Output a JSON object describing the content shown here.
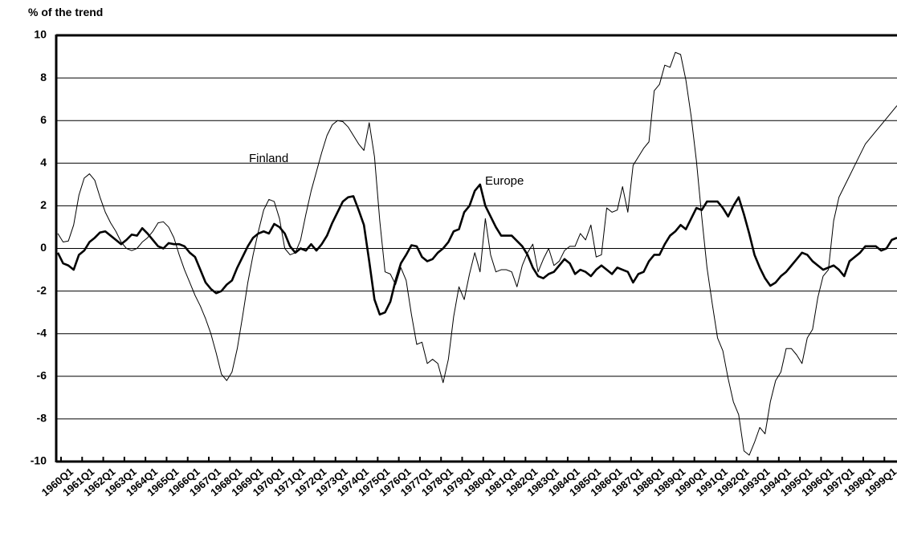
{
  "chart_data": {
    "type": "line",
    "y_label": "% of the trend",
    "annotations": [
      "Finland",
      "Europe"
    ],
    "categories": [
      "1960Q1",
      null,
      null,
      null,
      "1961Q1",
      null,
      null,
      null,
      "1962Q1",
      null,
      null,
      null,
      "1963Q1",
      null,
      null,
      null,
      "1964Q1",
      null,
      null,
      null,
      "1965Q1",
      null,
      null,
      null,
      "1966Q1",
      null,
      null,
      null,
      "1967Q1",
      null,
      null,
      null,
      "1968Q1",
      null,
      null,
      null,
      "1969Q1",
      null,
      null,
      null,
      "1970Q1",
      null,
      null,
      null,
      "1971Q1",
      null,
      null,
      null,
      "1972Q1",
      null,
      null,
      null,
      "1973Q1",
      null,
      null,
      null,
      "1974Q1",
      null,
      null,
      null,
      "1975Q1",
      null,
      null,
      null,
      "1976Q1",
      null,
      null,
      null,
      "1977Q1",
      null,
      null,
      null,
      "1978Q1",
      null,
      null,
      null,
      "1979Q1",
      null,
      null,
      null,
      "1980Q1",
      null,
      null,
      null,
      "1981Q1",
      null,
      null,
      null,
      "1982Q1",
      null,
      null,
      null,
      "1983Q1",
      null,
      null,
      null,
      "1984Q1",
      null,
      null,
      null,
      "1985Q1",
      null,
      null,
      null,
      "1986Q1",
      null,
      null,
      null,
      "1987Q1",
      null,
      null,
      null,
      "1988Q1",
      null,
      null,
      null,
      "1989Q1",
      null,
      null,
      null,
      "1990Q1",
      null,
      null,
      null,
      "1991Q1",
      null,
      null,
      null,
      "1992Q1",
      null,
      null,
      null,
      "1993Q1",
      null,
      null,
      null,
      "1994Q1",
      null,
      null,
      null,
      "1995Q1",
      null,
      null,
      null,
      "1996Q1",
      null,
      null,
      null,
      "1997Q1",
      null,
      null,
      null,
      "1998Q1",
      null,
      null,
      null,
      "1999Q1",
      null,
      null,
      null
    ],
    "series": [
      {
        "name": "Finland",
        "color": "#000000",
        "width": 1,
        "values": [
          0.7,
          0.3,
          0.35,
          1.1,
          2.5,
          3.3,
          3.5,
          3.2,
          2.4,
          1.7,
          1.2,
          0.8,
          0.3,
          0.0,
          -0.1,
          0.0,
          0.3,
          0.5,
          0.8,
          1.2,
          1.25,
          1.0,
          0.5,
          -0.3,
          -1.0,
          -1.6,
          -2.2,
          -2.7,
          -3.3,
          -4.0,
          -4.9,
          -5.9,
          -6.2,
          -5.8,
          -4.7,
          -3.2,
          -1.6,
          -0.3,
          0.8,
          1.8,
          2.3,
          2.2,
          1.4,
          0.0,
          -0.3,
          -0.2,
          0.4,
          1.6,
          2.7,
          3.6,
          4.5,
          5.3,
          5.8,
          6.0,
          5.95,
          5.7,
          5.3,
          4.9,
          4.6,
          5.9,
          4.3,
          1.3,
          -1.1,
          -1.2,
          -1.7,
          -0.9,
          -1.5,
          -3.1,
          -4.5,
          -4.4,
          -5.4,
          -5.2,
          -5.4,
          -6.3,
          -5.2,
          -3.2,
          -1.8,
          -2.4,
          -1.2,
          -0.2,
          -1.1,
          1.4,
          -0.3,
          -1.1,
          -1.0,
          -1.0,
          -1.1,
          -1.8,
          -0.8,
          -0.2,
          0.2,
          -1.1,
          -0.5,
          0.0,
          -0.8,
          -0.6,
          -0.1,
          0.1,
          0.1,
          0.7,
          0.4,
          1.1,
          -0.4,
          -0.3,
          1.9,
          1.7,
          1.8,
          2.9,
          1.7,
          3.9,
          4.3,
          4.7,
          5.0,
          7.4,
          7.7,
          8.6,
          8.5,
          9.2,
          9.1,
          7.9,
          6.2,
          4.1,
          1.5,
          -0.9,
          -2.6,
          -4.2,
          -4.8,
          -6.1,
          -7.2,
          -7.8,
          -9.5,
          -9.7,
          -9.1,
          -8.4,
          -8.7,
          -7.2,
          -6.2,
          -5.8,
          -4.7,
          -4.7,
          -5.0,
          -5.4,
          -4.2,
          -3.8,
          -2.3,
          -1.3,
          -1.0,
          1.3,
          2.4,
          2.9,
          3.4,
          3.9,
          4.4,
          4.9,
          5.2,
          5.5,
          5.8,
          6.1,
          6.4,
          6.7
        ]
      },
      {
        "name": "Europe",
        "color": "#000000",
        "width": 2.6,
        "values": [
          -0.2,
          -0.7,
          -0.8,
          -1.0,
          -0.3,
          -0.1,
          0.3,
          0.5,
          0.75,
          0.8,
          0.6,
          0.4,
          0.2,
          0.4,
          0.65,
          0.6,
          0.95,
          0.7,
          0.4,
          0.1,
          0.0,
          0.25,
          0.2,
          0.2,
          0.1,
          -0.2,
          -0.4,
          -1.0,
          -1.6,
          -1.9,
          -2.1,
          -2.0,
          -1.7,
          -1.5,
          -0.9,
          -0.4,
          0.1,
          0.5,
          0.7,
          0.8,
          0.7,
          1.15,
          1.0,
          0.7,
          0.1,
          -0.2,
          0.0,
          -0.1,
          0.2,
          -0.1,
          0.2,
          0.6,
          1.2,
          1.7,
          2.2,
          2.4,
          2.45,
          1.8,
          1.1,
          -0.6,
          -2.4,
          -3.1,
          -3.0,
          -2.5,
          -1.5,
          -0.7,
          -0.3,
          0.15,
          0.1,
          -0.4,
          -0.6,
          -0.5,
          -0.2,
          0.0,
          0.3,
          0.8,
          0.9,
          1.7,
          2.0,
          2.7,
          3.0,
          2.0,
          1.5,
          1.0,
          0.6,
          0.6,
          0.6,
          0.35,
          0.1,
          -0.3,
          -0.9,
          -1.3,
          -1.4,
          -1.2,
          -1.1,
          -0.8,
          -0.5,
          -0.7,
          -1.2,
          -1.0,
          -1.1,
          -1.3,
          -1.0,
          -0.8,
          -1.0,
          -1.2,
          -0.9,
          -1.0,
          -1.1,
          -1.6,
          -1.2,
          -1.1,
          -0.6,
          -0.3,
          -0.3,
          0.2,
          0.6,
          0.8,
          1.1,
          0.9,
          1.4,
          1.9,
          1.8,
          2.2,
          2.2,
          2.2,
          1.9,
          1.5,
          2.0,
          2.4,
          1.6,
          0.7,
          -0.3,
          -0.9,
          -1.4,
          -1.75,
          -1.6,
          -1.3,
          -1.1,
          -0.8,
          -0.5,
          -0.2,
          -0.3,
          -0.6,
          -0.8,
          -1.0,
          -0.9,
          -0.8,
          -1.0,
          -1.3,
          -0.6,
          -0.4,
          -0.2,
          0.1,
          0.1,
          0.1,
          -0.1,
          0.0,
          0.4,
          0.5
        ]
      }
    ],
    "ylim": [
      -10,
      10
    ],
    "yticks": [
      -10,
      -8,
      -6,
      -4,
      -2,
      0,
      2,
      4,
      6,
      8,
      10
    ],
    "grid": true
  }
}
